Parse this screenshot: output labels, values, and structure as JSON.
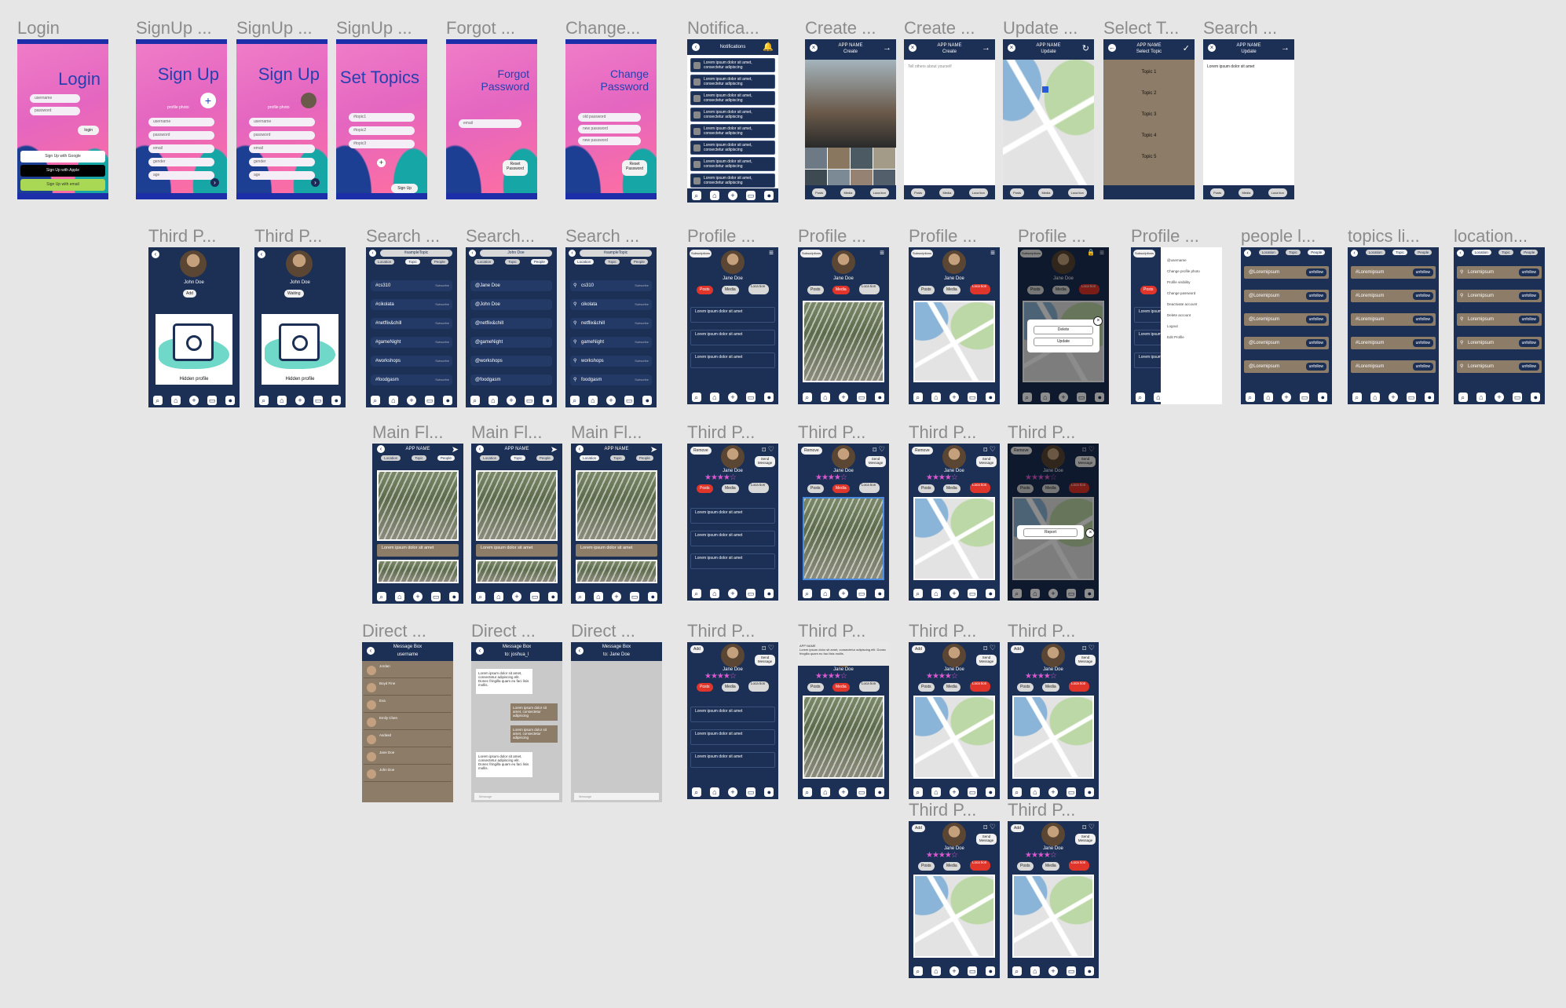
{
  "frames": [
    {
      "name": "Login",
      "kind": "login",
      "title": ""
    },
    {
      "name": "SignUp ...",
      "kind": "signup"
    },
    {
      "name": "SignUp ...",
      "kind": "signup2"
    },
    {
      "name": "SignUp ...",
      "kind": "topics"
    },
    {
      "name": "Forgot ...",
      "kind": "forgot"
    },
    {
      "name": "Change...",
      "kind": "change"
    },
    {
      "name": "Notifica...",
      "kind": "notifications"
    },
    {
      "name": "Create ...",
      "kind": "create_photo"
    },
    {
      "name": "Create ...",
      "kind": "create_text"
    },
    {
      "name": "Update ...",
      "kind": "update_map"
    },
    {
      "name": "Select T...",
      "kind": "select_topic"
    },
    {
      "name": "Search ...",
      "kind": "search_update"
    },
    {
      "name": "Third P...",
      "kind": "third_hidden_add"
    },
    {
      "name": "Third P...",
      "kind": "third_hidden_wait"
    },
    {
      "name": "Search ...",
      "kind": "search_topics"
    },
    {
      "name": "Search...",
      "kind": "search_people"
    },
    {
      "name": "Search ...",
      "kind": "search_locations"
    },
    {
      "name": "Profile ...",
      "kind": "profile_posts"
    },
    {
      "name": "Profile ...",
      "kind": "profile_media"
    },
    {
      "name": "Profile ...",
      "kind": "profile_location"
    },
    {
      "name": "Profile ...",
      "kind": "profile_delete"
    },
    {
      "name": "Profile ...",
      "kind": "profile_menu"
    },
    {
      "name": "people l...",
      "kind": "people_list"
    },
    {
      "name": "topics li...",
      "kind": "topics_list"
    },
    {
      "name": "location...",
      "kind": "location_list"
    },
    {
      "name": "Main Fl...",
      "kind": "main_feed",
      "tab": "People"
    },
    {
      "name": "Main Fl...",
      "kind": "main_feed",
      "tab": "Topic"
    },
    {
      "name": "Main Fl...",
      "kind": "main_feed",
      "tab": "Location"
    },
    {
      "name": "Third P...",
      "kind": "third_posts_remove"
    },
    {
      "name": "Third P...",
      "kind": "third_media_remove"
    },
    {
      "name": "Third P...",
      "kind": "third_location_remove"
    },
    {
      "name": "Third P...",
      "kind": "third_report"
    },
    {
      "name": "Direct ...",
      "kind": "dm_list"
    },
    {
      "name": "Direct ...",
      "kind": "dm_chat"
    },
    {
      "name": "Direct ...",
      "kind": "dm_empty"
    },
    {
      "name": "Third P...",
      "kind": "third_posts_add"
    },
    {
      "name": "Third P...",
      "kind": "third_media_add"
    },
    {
      "name": "Third P...",
      "kind": "third_location_add"
    },
    {
      "name": "Third P...",
      "kind": "third_location_add"
    },
    {
      "name": "Third P...",
      "kind": "third_location_add"
    },
    {
      "name": "Third P...",
      "kind": "third_location_add"
    }
  ],
  "auth": {
    "login": {
      "heading": "Login",
      "username": "username",
      "password": "password",
      "login_btn": "login",
      "google": "Sign Up with Google",
      "apple": "Sign Up with Apple",
      "email": "Sign Up with email"
    },
    "signup": {
      "heading": "Sign Up",
      "profile_photo": "profile photo",
      "fields": [
        "username",
        "password",
        "email",
        "gender",
        "age"
      ]
    },
    "topics": {
      "heading": "Set Topics",
      "fields": [
        "#topic1",
        "#topic2",
        "#topic3"
      ],
      "btn": "Sign Up"
    },
    "forgot": {
      "heading": "Forgot Password",
      "field": "email",
      "btn": "Reset Password"
    },
    "change": {
      "heading": "Change Password",
      "fields": [
        "old password",
        "new password",
        "new password"
      ],
      "btn": "Reset Password"
    }
  },
  "app": {
    "app_name": "APP NAME",
    "create": "Create",
    "update": "Update",
    "select_topic": "Select Topic",
    "notifications": "Notifications",
    "lorem": "Lorem ipsum dolor sit amet, consectetur adipiscing",
    "lorem_short": "Lorem ipsum dolor sit amet",
    "tell_others": "Tell others about yourself",
    "search_text": "Lorem ipsum dolor sit amet",
    "topics": [
      "Topic 1",
      "Topic 2",
      "Topic 3",
      "Topic 4",
      "Topic 5"
    ],
    "tabs": [
      "Location",
      "Topic",
      "People"
    ],
    "sample_topic": "#sampleTopic",
    "john": "John Doe",
    "jane": "Jane Doe",
    "add": "Add",
    "waiting": "Waiting",
    "hidden_profile": "Hidden profile",
    "subscribe": "Subscribe",
    "subscriptions": "Subscriptions",
    "search_topics": [
      "#cs310",
      "#cikolata",
      "#netflix&chill",
      "#gameNight",
      "#workshops",
      "#foodgasm"
    ],
    "search_people": [
      "@Jane Doe",
      "@John Doe",
      "@netflix&chill",
      "@gameNight",
      "@workshops",
      "@foodgasm"
    ],
    "search_locations": [
      "cs310",
      "cikolata",
      "netflix&chill",
      "gameNight",
      "workshops",
      "foodgasm"
    ],
    "posts": "Posts",
    "media": "Media",
    "location": "Loca tion",
    "remove": "Remove",
    "send_message": "Send Message",
    "report": "Report",
    "delete": "Delete",
    "menu_items": [
      "@username",
      "Change profile photo",
      "Profile visibility",
      "Change password",
      "Deactivate account",
      "Delete account",
      "Logout",
      "Edit Profile"
    ],
    "people_item": "@Loremipsum",
    "topic_item": "#Loremipsum",
    "location_item": "Loremipsum",
    "unfollow": "unfollow",
    "message_box": "Message Box",
    "username": "username",
    "to_joshua": "to: joshua_l",
    "to_jane": "to: Jane Doe",
    "message_placeholder": "Message",
    "dm_names": [
      "Jordan",
      "Boyd Fine",
      "Eva",
      "Emily Chen",
      "Asdasd",
      "Jane Doe",
      "John Doe"
    ],
    "lorem_long": "Lorem ipsum dolor sit amet, consectetur adipiscing elit. Donec fringilla quam eu faci lisis mollis."
  }
}
